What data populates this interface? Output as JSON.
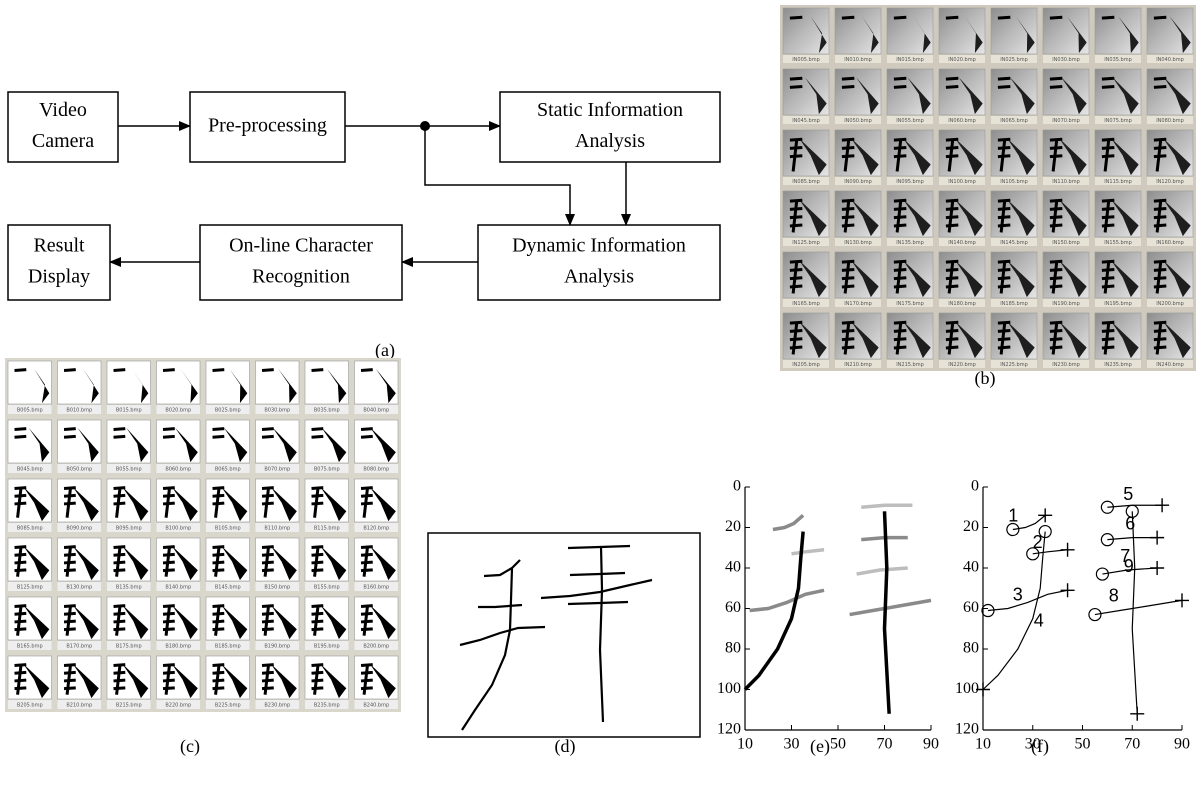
{
  "diagram": {
    "label": "(a)",
    "nodes": [
      {
        "lines": [
          "Video",
          "Camera"
        ]
      },
      {
        "lines": [
          "Pre-processing"
        ]
      },
      {
        "lines": [
          "Static Information",
          "Analysis"
        ]
      },
      {
        "lines": [
          "Dynamic Information",
          "Analysis"
        ]
      },
      {
        "lines": [
          "On-line Character",
          "Recognition"
        ]
      },
      {
        "lines": [
          "Result",
          "Display"
        ]
      }
    ]
  },
  "panel_b": {
    "label": "(b)",
    "captions": [
      "IN005.bmp",
      "IN010.bmp",
      "IN015.bmp",
      "IN020.bmp",
      "IN025.bmp",
      "IN030.bmp",
      "IN035.bmp",
      "IN040.bmp",
      "IN045.bmp",
      "IN050.bmp",
      "IN055.bmp",
      "IN060.bmp",
      "IN065.bmp",
      "IN070.bmp",
      "IN075.bmp",
      "IN080.bmp",
      "IN085.bmp",
      "IN090.bmp",
      "IN095.bmp",
      "IN100.bmp",
      "IN105.bmp",
      "IN110.bmp",
      "IN115.bmp",
      "IN120.bmp",
      "IN125.bmp",
      "IN130.bmp",
      "IN135.bmp",
      "IN140.bmp",
      "IN145.bmp",
      "IN150.bmp",
      "IN155.bmp",
      "IN160.bmp",
      "IN165.bmp",
      "IN170.bmp",
      "IN175.bmp",
      "IN180.bmp",
      "IN185.bmp",
      "IN190.bmp",
      "IN195.bmp",
      "IN200.bmp",
      "IN205.bmp",
      "IN210.bmp",
      "IN215.bmp",
      "IN220.bmp",
      "IN225.bmp",
      "IN230.bmp",
      "IN235.bmp",
      "IN240.bmp"
    ]
  },
  "panel_c": {
    "label": "(c)",
    "captions": [
      "B005.bmp",
      "B010.bmp",
      "B015.bmp",
      "B020.bmp",
      "B025.bmp",
      "B030.bmp",
      "B035.bmp",
      "B040.bmp",
      "B045.bmp",
      "B050.bmp",
      "B055.bmp",
      "B060.bmp",
      "B065.bmp",
      "B070.bmp",
      "B075.bmp",
      "B080.bmp",
      "B085.bmp",
      "B090.bmp",
      "B095.bmp",
      "B100.bmp",
      "B105.bmp",
      "B110.bmp",
      "B115.bmp",
      "B120.bmp",
      "B125.bmp",
      "B130.bmp",
      "B135.bmp",
      "B140.bmp",
      "B145.bmp",
      "B150.bmp",
      "B155.bmp",
      "B160.bmp",
      "B165.bmp",
      "B170.bmp",
      "B175.bmp",
      "B180.bmp",
      "B185.bmp",
      "B190.bmp",
      "B195.bmp",
      "B200.bmp",
      "B205.bmp",
      "B210.bmp",
      "B215.bmp",
      "B220.bmp",
      "B225.bmp",
      "B230.bmp",
      "B235.bmp",
      "B240.bmp"
    ]
  },
  "panel_d": {
    "label": "(d)"
  },
  "chart_data": [
    {
      "type": "line",
      "label": "(e)",
      "xlim": [
        10,
        90
      ],
      "ylim": [
        0,
        120
      ],
      "y_inverted": true,
      "xticks": [
        10,
        30,
        50,
        70,
        90
      ],
      "yticks": [
        0,
        20,
        40,
        60,
        80,
        100,
        120
      ],
      "series": [
        {
          "color": "#8a8a8a",
          "x": [
            22,
            27,
            31,
            35
          ],
          "values": [
            21,
            20,
            18,
            14
          ]
        },
        {
          "color": "#bdbdbd",
          "x": [
            30,
            36,
            44
          ],
          "values": [
            33,
            32,
            31
          ]
        },
        {
          "color": "#8a8a8a",
          "x": [
            12,
            20,
            28,
            36,
            44
          ],
          "values": [
            61,
            60,
            57,
            53,
            51
          ]
        },
        {
          "color": "#000000",
          "x": [
            35,
            34,
            33,
            30,
            24,
            16,
            10
          ],
          "values": [
            22,
            35,
            50,
            65,
            80,
            93,
            100
          ]
        },
        {
          "color": "#bdbdbd",
          "x": [
            60,
            70,
            82
          ],
          "values": [
            10,
            9,
            9
          ]
        },
        {
          "color": "#8a8a8a",
          "x": [
            60,
            70,
            80
          ],
          "values": [
            26,
            25,
            25
          ]
        },
        {
          "color": "#bdbdbd",
          "x": [
            58,
            68,
            80
          ],
          "values": [
            43,
            41,
            40
          ]
        },
        {
          "color": "#8a8a8a",
          "x": [
            55,
            65,
            75,
            90
          ],
          "values": [
            63,
            61,
            59,
            56
          ]
        },
        {
          "color": "#000000",
          "x": [
            70,
            71,
            70,
            72
          ],
          "values": [
            12,
            40,
            70,
            112
          ]
        }
      ]
    },
    {
      "type": "line",
      "label": "(f)",
      "xlim": [
        10,
        90
      ],
      "ylim": [
        0,
        120
      ],
      "y_inverted": true,
      "xticks": [
        10,
        30,
        50,
        70,
        90
      ],
      "yticks": [
        0,
        20,
        40,
        60,
        80,
        100,
        120
      ],
      "series": [
        {
          "label": "1",
          "color": "#000000",
          "x": [
            22,
            27,
            31,
            35
          ],
          "values": [
            21,
            20,
            18,
            14
          ]
        },
        {
          "label": "2",
          "color": "#000000",
          "x": [
            30,
            36,
            44
          ],
          "values": [
            33,
            32,
            31
          ]
        },
        {
          "label": "3",
          "color": "#000000",
          "x": [
            12,
            20,
            28,
            36,
            44
          ],
          "values": [
            61,
            60,
            57,
            53,
            51
          ]
        },
        {
          "label": "4",
          "color": "#000000",
          "x": [
            35,
            34,
            33,
            30,
            24,
            16,
            10
          ],
          "values": [
            22,
            35,
            50,
            65,
            80,
            93,
            100
          ]
        },
        {
          "label": "5",
          "color": "#000000",
          "x": [
            60,
            70,
            82
          ],
          "values": [
            10,
            9,
            9
          ]
        },
        {
          "label": "6",
          "color": "#000000",
          "x": [
            60,
            70,
            80
          ],
          "values": [
            26,
            25,
            25
          ]
        },
        {
          "label": "7",
          "color": "#000000",
          "x": [
            58,
            68,
            80
          ],
          "values": [
            43,
            41,
            40
          ]
        },
        {
          "label": "8",
          "color": "#000000",
          "x": [
            55,
            65,
            75,
            90
          ],
          "values": [
            63,
            61,
            59,
            56
          ]
        },
        {
          "label": "9",
          "color": "#000000",
          "x": [
            70,
            71,
            70,
            72
          ],
          "values": [
            12,
            40,
            70,
            112
          ]
        }
      ]
    }
  ]
}
